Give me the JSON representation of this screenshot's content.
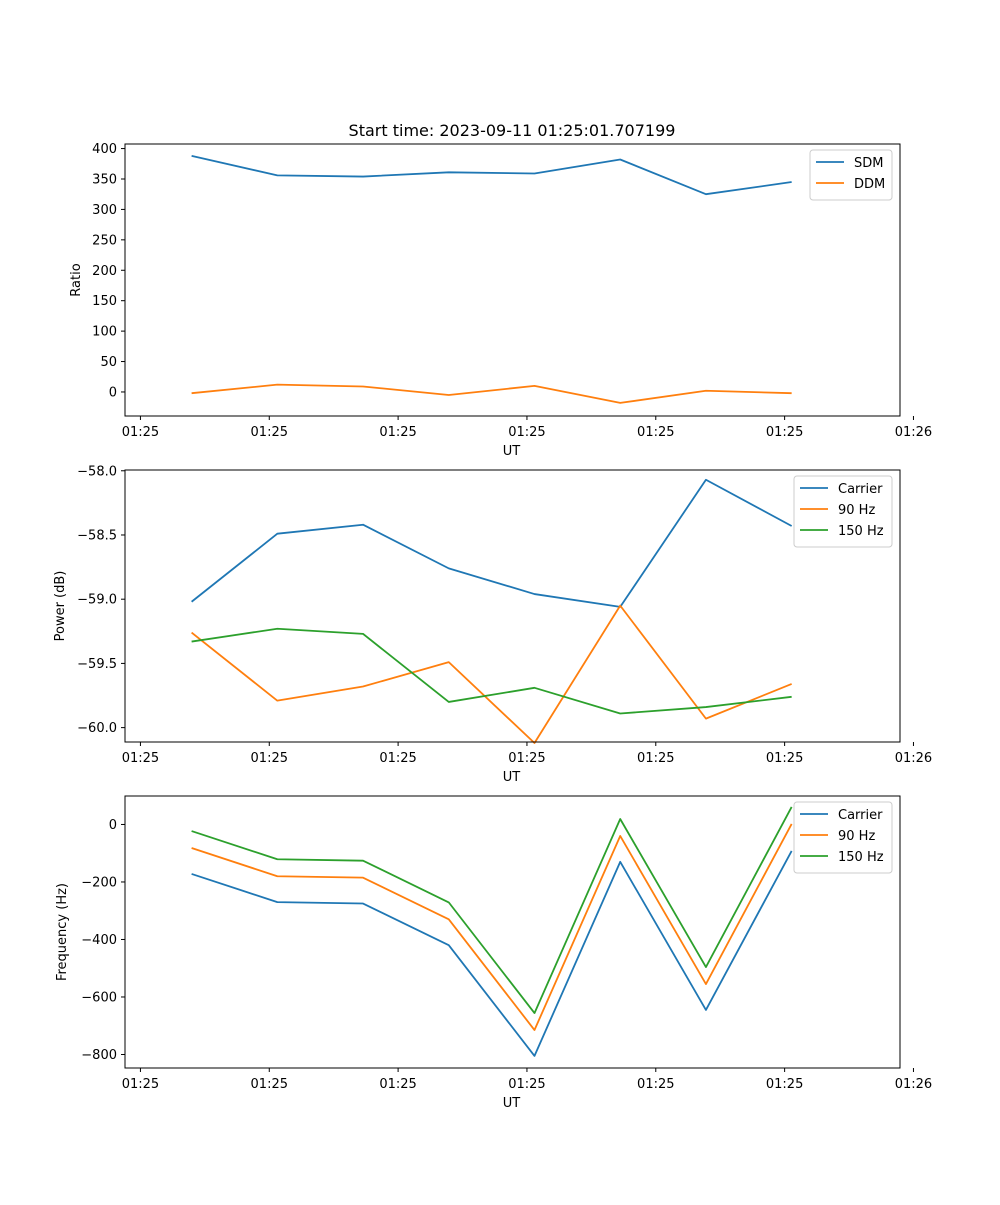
{
  "figure_title": "Start time: 2023-09-11 01:25:01.707199",
  "colors": {
    "series0": "#1f77b4",
    "series1": "#ff7f0e",
    "series2": "#2ca02c"
  },
  "chart_data": [
    {
      "type": "line",
      "title": "Start time: 2023-09-11 01:25:01.707199",
      "xlabel": "UT",
      "ylabel": "Ratio",
      "x": [
        1,
        2,
        3,
        4,
        5,
        6,
        7,
        8
      ],
      "xlim": [
        0.223,
        9.264
      ],
      "xticks": [
        0.403,
        1.906,
        3.409,
        4.912,
        6.415,
        7.918,
        9.421
      ],
      "xtick_labels": [
        "01:25",
        "01:25",
        "01:25",
        "01:25",
        "01:25",
        "01:25",
        "01:26"
      ],
      "ylim": [
        -39.5,
        407.5
      ],
      "yticks": [
        0,
        50,
        100,
        150,
        200,
        250,
        300,
        350,
        400
      ],
      "ytick_labels": [
        "0",
        "50",
        "100",
        "150",
        "200",
        "250",
        "300",
        "350",
        "400"
      ],
      "legend_position": "top-right",
      "series": [
        {
          "name": "SDM",
          "values": [
            388,
            356,
            354,
            361,
            359,
            382,
            325,
            345
          ]
        },
        {
          "name": "DDM",
          "values": [
            -2,
            12,
            9,
            -5,
            10,
            -18,
            2,
            -2
          ]
        }
      ]
    },
    {
      "type": "line",
      "title": "",
      "xlabel": "UT",
      "ylabel": "Power (dB)",
      "x": [
        1,
        2,
        3,
        4,
        5,
        6,
        7,
        8
      ],
      "xlim": [
        0.223,
        9.264
      ],
      "xticks": [
        0.403,
        1.906,
        3.409,
        4.912,
        6.415,
        7.918,
        9.421
      ],
      "xtick_labels": [
        "01:25",
        "01:25",
        "01:25",
        "01:25",
        "01:25",
        "01:25",
        "01:26"
      ],
      "ylim": [
        -60.112,
        -57.994
      ],
      "yticks": [
        -60.0,
        -59.5,
        -59.0,
        -58.5,
        -58.0
      ],
      "ytick_labels": [
        "−60.0",
        "−59.5",
        "−59.0",
        "−58.5",
        "−58.0"
      ],
      "legend_position": "top-right",
      "series": [
        {
          "name": "Carrier",
          "values": [
            -59.02,
            -58.49,
            -58.42,
            -58.76,
            -58.96,
            -59.06,
            -58.07,
            -58.43
          ]
        },
        {
          "name": "90 Hz",
          "values": [
            -59.26,
            -59.79,
            -59.68,
            -59.49,
            -60.12,
            -59.05,
            -59.93,
            -59.66
          ]
        },
        {
          "name": "150 Hz",
          "values": [
            -59.33,
            -59.23,
            -59.27,
            -59.8,
            -59.69,
            -59.89,
            -59.84,
            -59.76
          ]
        }
      ]
    },
    {
      "type": "line",
      "title": "",
      "xlabel": "UT",
      "ylabel": "Frequency (Hz)",
      "x": [
        1,
        2,
        3,
        4,
        5,
        6,
        7,
        8
      ],
      "xlim": [
        0.223,
        9.264
      ],
      "xticks": [
        0.403,
        1.906,
        3.409,
        4.912,
        6.415,
        7.918,
        9.421
      ],
      "xtick_labels": [
        "01:25",
        "01:25",
        "01:25",
        "01:25",
        "01:25",
        "01:25",
        "01:26"
      ],
      "ylim": [
        -847,
        99
      ],
      "yticks": [
        -800,
        -600,
        -400,
        -200,
        0
      ],
      "ytick_labels": [
        "−800",
        "−600",
        "−400",
        "−200",
        "0"
      ],
      "legend_position": "top-right",
      "series": [
        {
          "name": "Carrier",
          "values": [
            -172,
            -270,
            -275,
            -420,
            -805,
            -130,
            -645,
            -92
          ]
        },
        {
          "name": "90 Hz",
          "values": [
            -82,
            -180,
            -185,
            -330,
            -715,
            -40,
            -555,
            2
          ]
        },
        {
          "name": "150 Hz",
          "values": [
            -23,
            -121,
            -126,
            -271,
            -656,
            19,
            -496,
            61
          ]
        }
      ]
    }
  ]
}
